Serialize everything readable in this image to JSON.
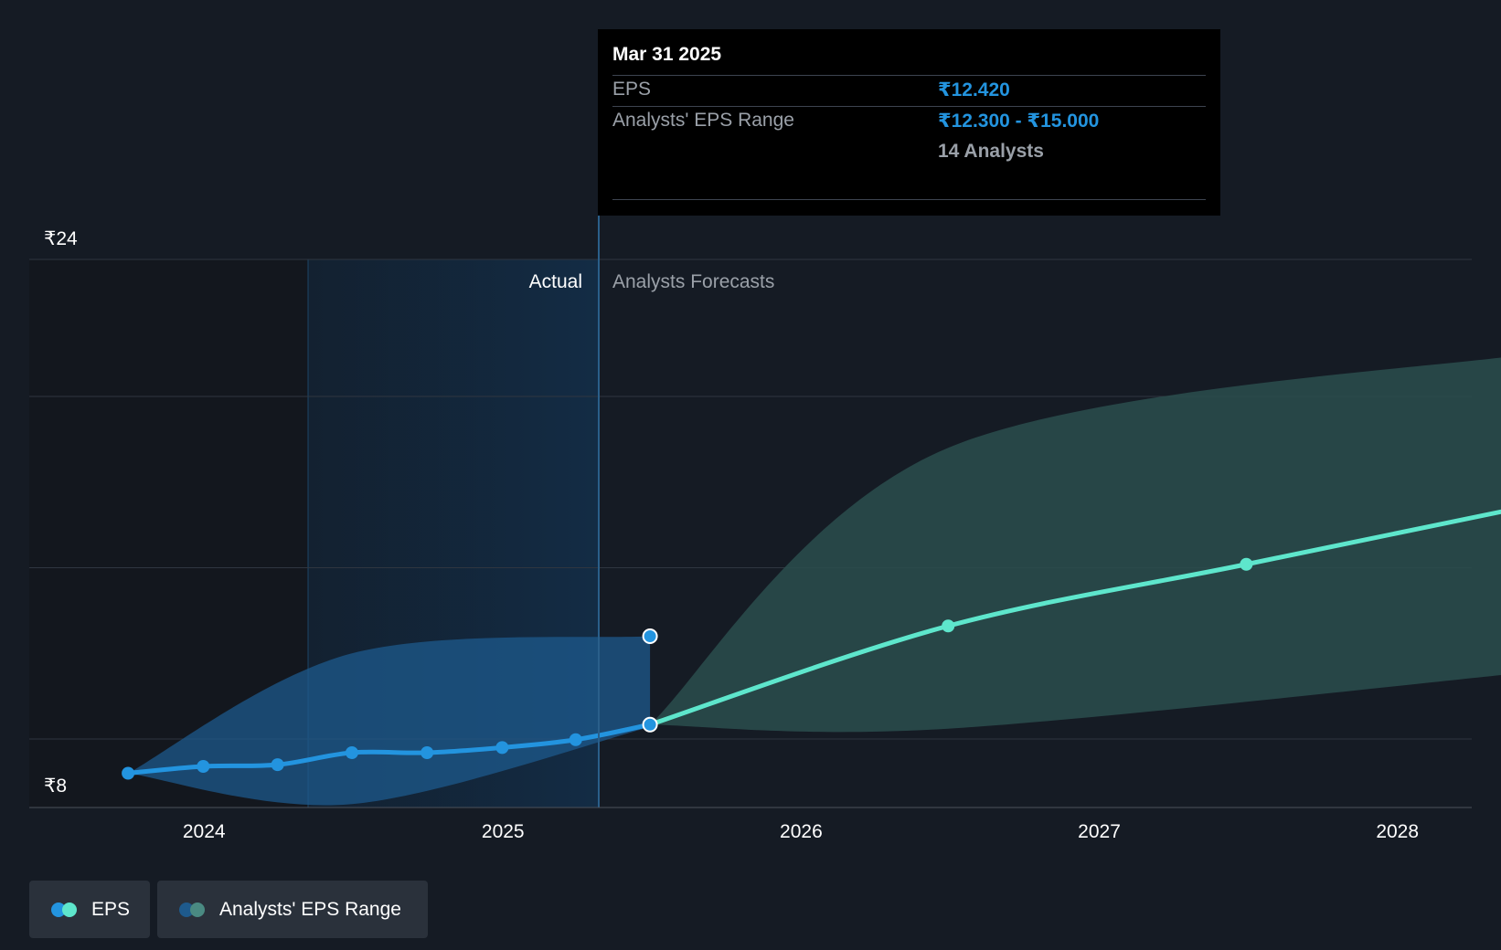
{
  "chart_data": {
    "type": "line",
    "title": "",
    "ylabel": "",
    "xlabel": "",
    "y_tick_labels": [
      "₹24",
      "₹8"
    ],
    "ylim": [
      8,
      24
    ],
    "x_ticks": [
      "2024",
      "2025",
      "2026",
      "2027",
      "2028"
    ],
    "xlim": [
      "2023-06-01",
      "2028-04-01"
    ],
    "grid": true,
    "regions": {
      "actual_label": "Actual",
      "forecast_label": "Analysts Forecasts",
      "divider_date": "2025-03-31"
    },
    "series": [
      {
        "name": "EPS",
        "kind": "actual",
        "color": "#2394df",
        "points": [
          {
            "x": "2023-09-30",
            "y": 9.0
          },
          {
            "x": "2023-12-31",
            "y": 9.2
          },
          {
            "x": "2024-03-31",
            "y": 9.25
          },
          {
            "x": "2024-06-30",
            "y": 9.6
          },
          {
            "x": "2024-09-30",
            "y": 9.6
          },
          {
            "x": "2024-12-31",
            "y": 9.75
          },
          {
            "x": "2025-03-31",
            "y": 9.98
          },
          {
            "x": "2025-06-30",
            "y": 10.42
          }
        ]
      },
      {
        "name": "EPS",
        "kind": "forecast",
        "color": "#5ee6cc",
        "points": [
          {
            "x": "2025-06-30",
            "y": 10.42
          },
          {
            "x": "2026-06-30",
            "y": 13.3
          },
          {
            "x": "2027-06-30",
            "y": 15.1
          },
          {
            "x": "2028-06-30",
            "y": 16.9
          }
        ]
      }
    ],
    "ranges": [
      {
        "name": "Analysts' EPS Range",
        "kind": "actual",
        "color": "#1e5a8c",
        "points": [
          {
            "x": "2023-09-30",
            "low": 9.0,
            "high": 9.0
          },
          {
            "x": "2024-06-30",
            "low": 8.1,
            "high": 12.5
          },
          {
            "x": "2025-06-30",
            "low": 10.35,
            "high": 13.0
          }
        ]
      },
      {
        "name": "Analysts' EPS Range",
        "kind": "forecast",
        "color": "#2a4d4e",
        "points": [
          {
            "x": "2025-06-30",
            "low": 10.42,
            "high": 10.42
          },
          {
            "x": "2026-06-30",
            "low": 10.3,
            "high": 18.5
          },
          {
            "x": "2028-06-30",
            "low": 12.0,
            "high": 21.3
          }
        ]
      }
    ],
    "highlight_points": [
      {
        "x": "2025-06-30",
        "y": 13.0
      },
      {
        "x": "2025-06-30",
        "y": 10.42
      }
    ]
  },
  "tooltip": {
    "date": "Mar 31 2025",
    "eps_label": "EPS",
    "eps_value": "₹12.420",
    "range_label": "Analysts' EPS Range",
    "range_value": "₹12.300 - ₹15.000",
    "analysts": "14 Analysts"
  },
  "legend": {
    "eps": "EPS",
    "range": "Analysts' EPS Range"
  }
}
